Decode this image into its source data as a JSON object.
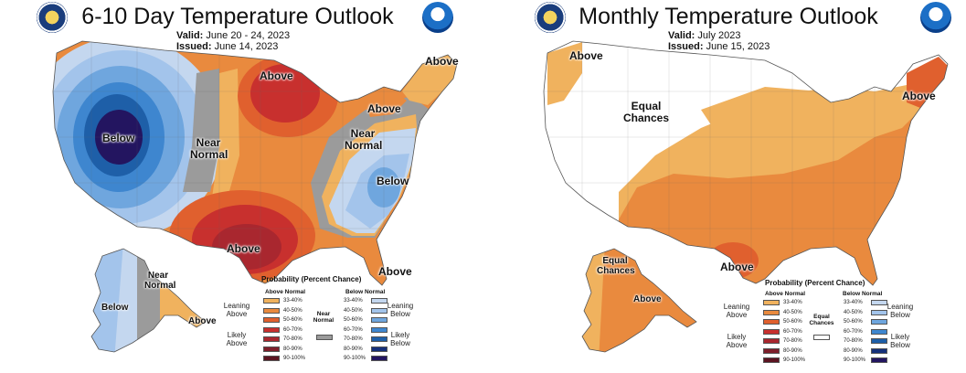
{
  "colors": {
    "above": [
      "#F0B25E",
      "#E98A3E",
      "#E0602E",
      "#C8302E",
      "#A9272F",
      "#7E1F2B",
      "#5C1421"
    ],
    "below": [
      "#C4D7EF",
      "#A3C4EB",
      "#6FA6DE",
      "#3E86CF",
      "#1E5FA8",
      "#15307A",
      "#231560"
    ],
    "near_normal": "#9B9B9B",
    "equal_chances": "#FFFFFF"
  },
  "panels": [
    {
      "title": "6-10 Day Temperature Outlook",
      "valid_label": "Valid:",
      "valid_value": "June 20 - 24, 2023",
      "issued_label": "Issued:",
      "issued_value": "June 14, 2023",
      "logos": [
        "doc-seal-icon",
        "noaa-logo-icon"
      ]
    },
    {
      "title": "Monthly Temperature Outlook",
      "valid_label": "Valid:",
      "valid_value": "July 2023",
      "issued_label": "Issued:",
      "issued_value": "June 15, 2023",
      "logos": [
        "doc-seal-icon",
        "noaa-logo-icon"
      ]
    }
  ],
  "legend": {
    "title": "Probability (Percent Chance)",
    "above_head": "Above Normal",
    "below_head": "Below Normal",
    "near_head": "Near Normal",
    "equal_head": "Equal Chances",
    "bins": [
      "33-40%",
      "40-50%",
      "50-60%",
      "60-70%",
      "70-80%",
      "80-90%",
      "90-100%"
    ],
    "leaning_above": "Leaning Above",
    "likely_above": "Likely Above",
    "leaning_below": "Leaning Below",
    "likely_below": "Likely Below"
  },
  "chart_data": [
    {
      "type": "map",
      "title": "6-10 Day Temperature Outlook",
      "valid": "June 20 - 24, 2023",
      "issued": "June 14, 2023",
      "categories": [
        "Above",
        "Below",
        "Near Normal"
      ],
      "region_labels": [
        {
          "text": "Below",
          "category": "Below",
          "region": "Pacific Northwest / Great Basin",
          "max_probability": "90-100%"
        },
        {
          "text": "Near Normal",
          "category": "Near Normal",
          "region": "Northern Rockies"
        },
        {
          "text": "Above",
          "category": "Above",
          "region": "Upper Midwest / Great Lakes",
          "max_probability": "60-70%"
        },
        {
          "text": "Above",
          "category": "Above",
          "region": "New England"
        },
        {
          "text": "Above",
          "category": "Above",
          "region": "Mid-Atlantic"
        },
        {
          "text": "Near Normal",
          "category": "Near Normal",
          "region": "Ohio Valley / Appalachians"
        },
        {
          "text": "Below",
          "category": "Below",
          "region": "Southeast",
          "max_probability": "50-60%"
        },
        {
          "text": "Above",
          "category": "Above",
          "region": "Texas / Southern Plains",
          "max_probability": "70-80%"
        },
        {
          "text": "Above",
          "category": "Above",
          "region": "Florida"
        },
        {
          "text": "Below",
          "category": "Below",
          "region": "Western Alaska"
        },
        {
          "text": "Near Normal",
          "category": "Near Normal",
          "region": "Interior Alaska"
        },
        {
          "text": "Above",
          "category": "Above",
          "region": "Southeast Alaska"
        }
      ]
    },
    {
      "type": "map",
      "title": "Monthly Temperature Outlook",
      "valid": "July 2023",
      "issued": "June 15, 2023",
      "categories": [
        "Above",
        "Equal Chances"
      ],
      "region_labels": [
        {
          "text": "Above",
          "category": "Above",
          "region": "Pacific Northwest coast",
          "max_probability": "33-40%"
        },
        {
          "text": "Equal Chances",
          "category": "Equal Chances",
          "region": "Northern Rockies / Northern Plains"
        },
        {
          "text": "Above",
          "category": "Above",
          "region": "Northeast",
          "max_probability": "50-60%"
        },
        {
          "text": "Above",
          "category": "Above",
          "region": "Texas",
          "max_probability": "50-60%"
        },
        {
          "text": "Equal Chances",
          "category": "Equal Chances",
          "region": "Western Alaska"
        },
        {
          "text": "Above",
          "category": "Above",
          "region": "Alaska",
          "max_probability": "40-50%"
        }
      ]
    }
  ]
}
